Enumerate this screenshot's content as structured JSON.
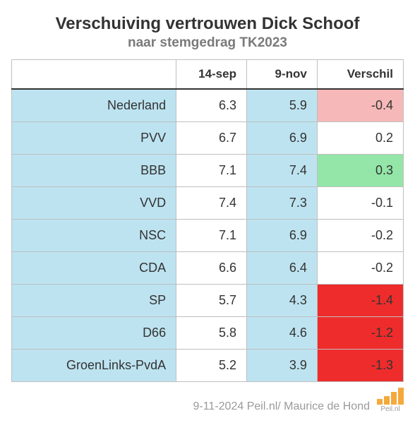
{
  "title": "Verschuiving vertrouwen Dick Schoof",
  "subtitle": "naar stemgedrag TK2023",
  "title_fontsize": 24,
  "subtitle_fontsize": 19,
  "colors": {
    "label_bg": "#bde3f0",
    "col2_bg": "#bde3f0",
    "white": "#ffffff",
    "light_red": "#f6b8b8",
    "green": "#93e6a7",
    "red": "#ee2c2c",
    "border": "#bfbfbf",
    "header_border": "#333333",
    "text": "#333333"
  },
  "columns": [
    "",
    "14-sep",
    "9-nov",
    "Verschil"
  ],
  "rows": [
    {
      "label": "Nederland",
      "v1": "6.3",
      "v2": "5.9",
      "diff": "-0.4",
      "diff_bg": "light_red"
    },
    {
      "label": "PVV",
      "v1": "6.7",
      "v2": "6.9",
      "diff": "0.2",
      "diff_bg": "white"
    },
    {
      "label": "BBB",
      "v1": "7.1",
      "v2": "7.4",
      "diff": "0.3",
      "diff_bg": "green"
    },
    {
      "label": "VVD",
      "v1": "7.4",
      "v2": "7.3",
      "diff": "-0.1",
      "diff_bg": "white"
    },
    {
      "label": "NSC",
      "v1": "7.1",
      "v2": "6.9",
      "diff": "-0.2",
      "diff_bg": "white"
    },
    {
      "label": "CDA",
      "v1": "6.6",
      "v2": "6.4",
      "diff": "-0.2",
      "diff_bg": "white"
    },
    {
      "label": "SP",
      "v1": "5.7",
      "v2": "4.3",
      "diff": "-1.4",
      "diff_bg": "red"
    },
    {
      "label": "D66",
      "v1": "5.8",
      "v2": "4.6",
      "diff": "-1.2",
      "diff_bg": "red"
    },
    {
      "label": "GroenLinks-PvdA",
      "v1": "5.2",
      "v2": "3.9",
      "diff": "-1.3",
      "diff_bg": "red"
    }
  ],
  "footer": "9-11-2024 Peil.nl/ Maurice de Hond",
  "logo_label": "Peil.nl",
  "logo_bar_heights": [
    8,
    12,
    18,
    24
  ]
}
